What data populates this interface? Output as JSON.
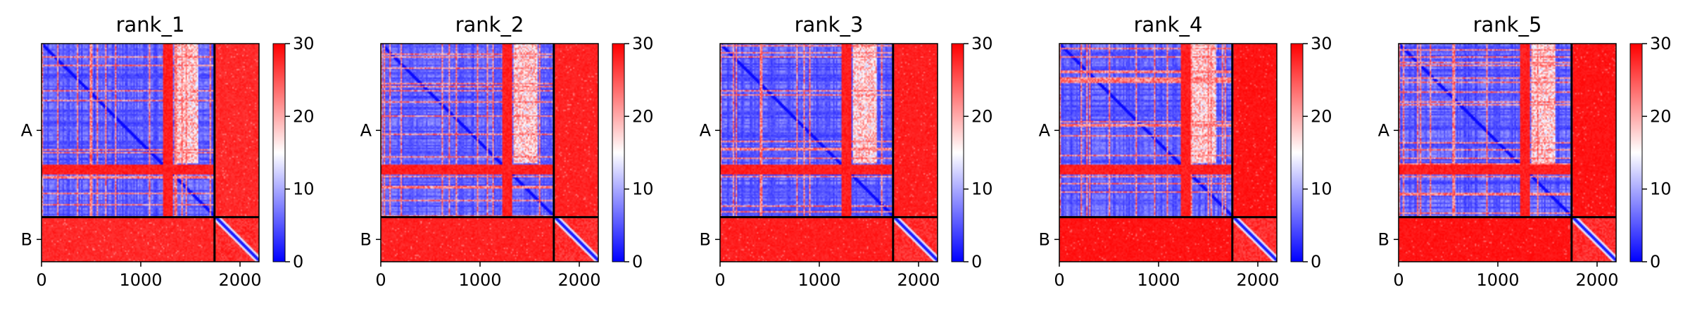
{
  "colors": {
    "low": "#0000ff",
    "mid": "#ffffff",
    "high": "#ff0000",
    "frame": "#000000"
  },
  "chart_data": [
    {
      "type": "heatmap",
      "title": "rank_1",
      "xticks": [
        "0",
        "1000",
        "2000"
      ],
      "yticks": [
        "A",
        "B"
      ],
      "colorbar": {
        "min": 0,
        "max": 30,
        "ticks": [
          "0",
          "10",
          "20",
          "30"
        ]
      },
      "chain_boundary": 1750,
      "total_length": 2200,
      "cross_block_level": 0.92
    },
    {
      "type": "heatmap",
      "title": "rank_2",
      "xticks": [
        "0",
        "1000",
        "2000"
      ],
      "yticks": [
        "A",
        "B"
      ],
      "colorbar": {
        "min": 0,
        "max": 30,
        "ticks": [
          "0",
          "10",
          "20",
          "30"
        ]
      },
      "chain_boundary": 1750,
      "total_length": 2200,
      "cross_block_level": 0.94
    },
    {
      "type": "heatmap",
      "title": "rank_3",
      "xticks": [
        "0",
        "1000",
        "2000"
      ],
      "yticks": [
        "A",
        "B"
      ],
      "colorbar": {
        "min": 0,
        "max": 30,
        "ticks": [
          "0",
          "10",
          "20",
          "30"
        ]
      },
      "chain_boundary": 1750,
      "total_length": 2200,
      "cross_block_level": 0.95
    },
    {
      "type": "heatmap",
      "title": "rank_4",
      "xticks": [
        "0",
        "1000",
        "2000"
      ],
      "yticks": [
        "A",
        "B"
      ],
      "colorbar": {
        "min": 0,
        "max": 30,
        "ticks": [
          "0",
          "10",
          "20",
          "30"
        ]
      },
      "chain_boundary": 1750,
      "total_length": 2200,
      "cross_block_level": 0.98
    },
    {
      "type": "heatmap",
      "title": "rank_5",
      "xticks": [
        "0",
        "1000",
        "2000"
      ],
      "yticks": [
        "A",
        "B"
      ],
      "colorbar": {
        "min": 0,
        "max": 30,
        "ticks": [
          "0",
          "10",
          "20",
          "30"
        ]
      },
      "chain_boundary": 1750,
      "total_length": 2200,
      "cross_block_level": 0.98
    }
  ]
}
